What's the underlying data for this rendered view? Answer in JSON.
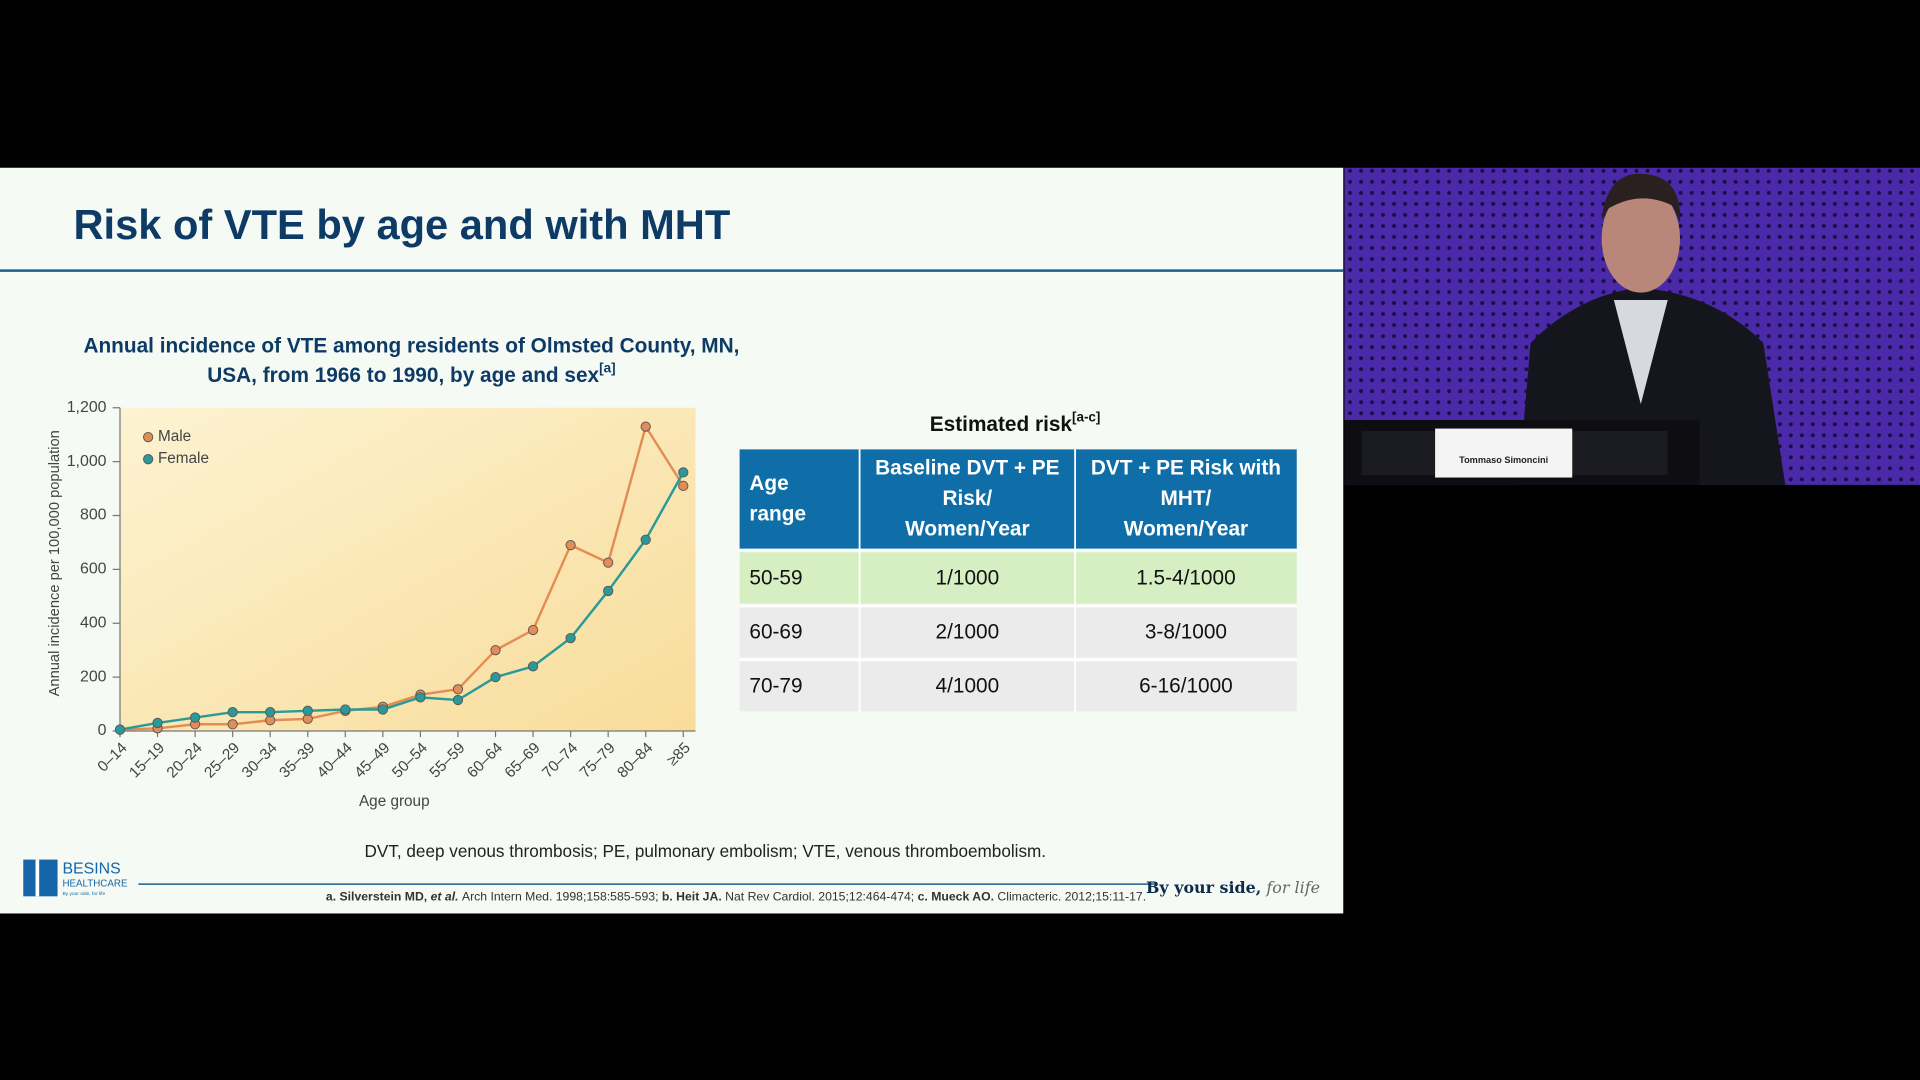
{
  "slide": {
    "title": "Risk of VTE by age and with MHT",
    "table": {
      "title": "Estimated risk",
      "title_sup": "[a-c]",
      "headers": [
        [
          "Age",
          "range"
        ],
        [
          "Baseline DVT + PE",
          "Risk/",
          "Women/Year"
        ],
        [
          "DVT + PE Risk with",
          "MHT/",
          "Women/Year"
        ]
      ],
      "rows": [
        [
          "50-59",
          "1/1000",
          "1.5-4/1000"
        ],
        [
          "60-69",
          "2/1000",
          "3-8/1000"
        ],
        [
          "70-79",
          "4/1000",
          "6-16/1000"
        ]
      ]
    },
    "footnote": "DVT, deep venous thrombosis; PE, pulmonary embolism; VTE, venous thromboembolism.",
    "references": [
      {
        "author": "a. Silverstein MD,",
        "etal": "et al.",
        "source": "Arch Intern Med. 1998;158:585-593;"
      },
      {
        "author": "b. Heit JA.",
        "source": "Nat Rev Cardiol. 2015;12:464-474;"
      },
      {
        "author": "c. Mueck AO.",
        "source": "Climacteric. 2012;15:11-17."
      }
    ],
    "logo": {
      "name": "BESINS",
      "sub": "HEALTHCARE",
      "tag": "By your side, for life"
    },
    "tagline": {
      "main": "By your side,",
      "script": "for life"
    },
    "speaker": {
      "nameplate": "Tommaso Simoncini"
    }
  },
  "chart_data": {
    "type": "line",
    "title": "Annual incidence of VTE among residents of Olmsted County, MN, USA, from 1966 to 1990, by age and sex",
    "title_sup": "[a]",
    "categories": [
      "0–14",
      "15–19",
      "20–24",
      "25–29",
      "30–34",
      "35–39",
      "40–44",
      "45–49",
      "50–54",
      "55–59",
      "60–64",
      "65–69",
      "70–74",
      "75–79",
      "80–84",
      "≥85"
    ],
    "series": [
      {
        "name": "Male",
        "color": "#e38d55",
        "values": [
          5,
          10,
          25,
          25,
          40,
          45,
          75,
          90,
          135,
          155,
          300,
          375,
          690,
          625,
          1130,
          910
        ]
      },
      {
        "name": "Female",
        "color": "#2a9a98",
        "values": [
          5,
          30,
          50,
          70,
          70,
          75,
          80,
          80,
          125,
          115,
          200,
          240,
          345,
          520,
          710,
          960
        ]
      }
    ],
    "ylim": [
      0,
      1200
    ],
    "yticks": [
      0,
      200,
      400,
      600,
      800,
      {
        "value": 1000,
        "label": "1,000"
      },
      {
        "value": 1200,
        "label": "1,200"
      }
    ],
    "ylabel": "Annual incidence per 100,000 population",
    "xlabel": "Age group",
    "legend": "upper left"
  }
}
